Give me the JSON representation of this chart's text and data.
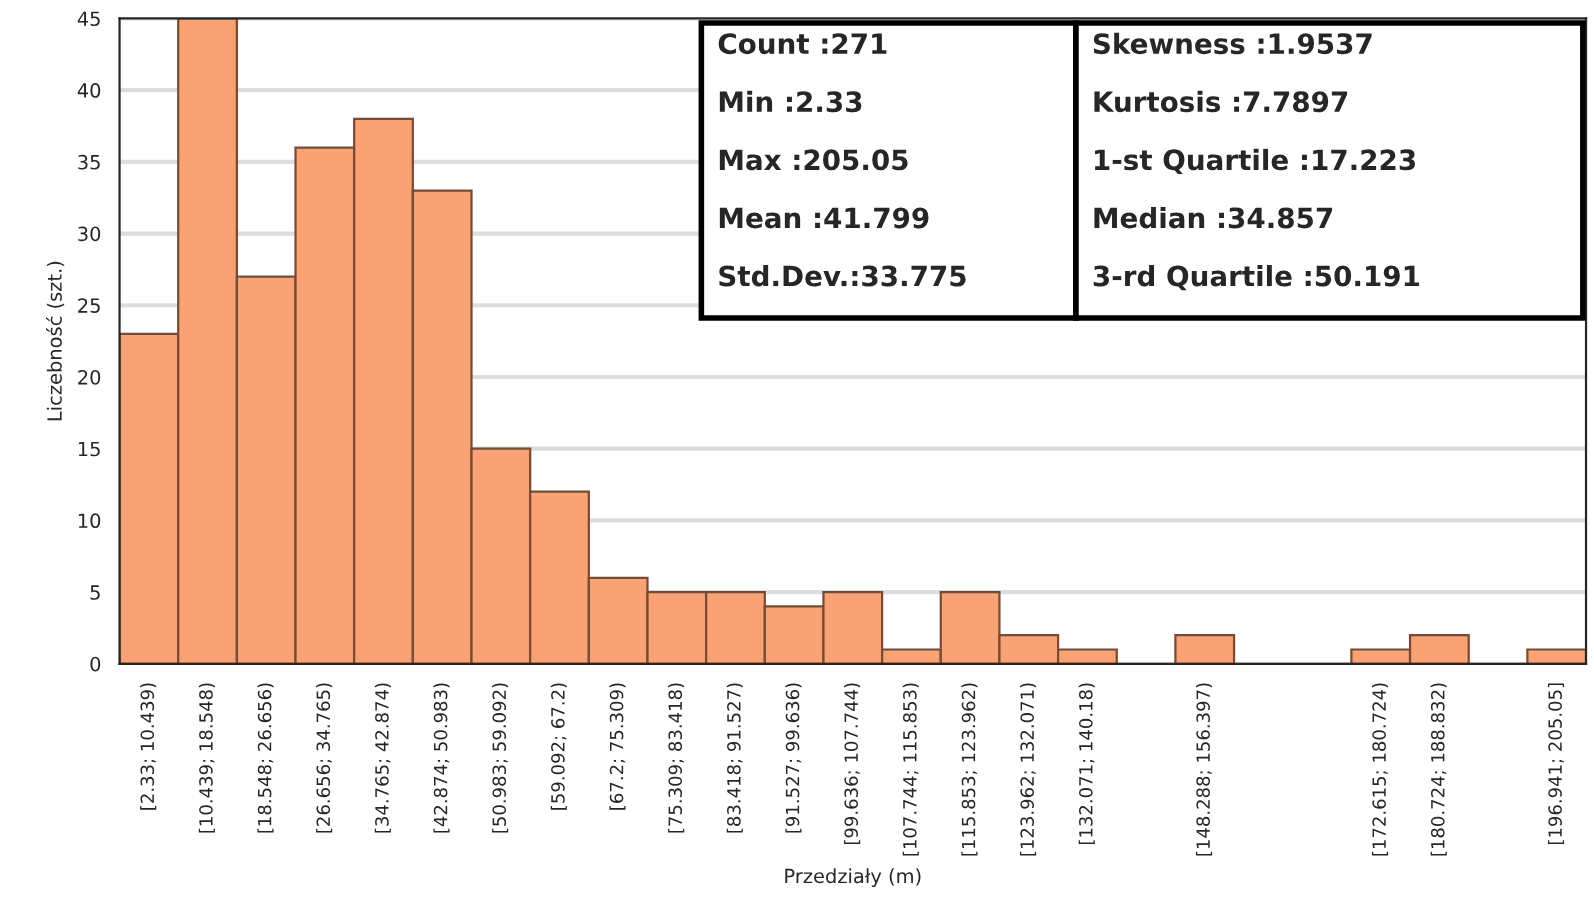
{
  "chart_data": {
    "type": "bar",
    "xlabel": "Przedziały (m)",
    "ylabel": "Liczebność (szt.)",
    "categories": [
      "[2.33; 10.439)",
      "[10.439; 18.548)",
      "[18.548; 26.656)",
      "[26.656; 34.765)",
      "[34.765; 42.874)",
      "[42.874; 50.983)",
      "[50.983; 59.092)",
      "[59.092; 67.2)",
      "[67.2; 75.309)",
      "[75.309; 83.418)",
      "[83.418; 91.527)",
      "[91.527; 99.636)",
      "[99.636; 107.744)",
      "[107.744; 115.853)",
      "[115.853; 123.962)",
      "[123.962; 132.071)",
      "[132.071; 140.18)",
      null,
      "[148.288; 156.397)",
      null,
      null,
      "[172.615; 180.724)",
      "[180.724; 188.832)",
      null,
      "[196.941; 205.05]"
    ],
    "values": [
      23,
      45,
      27,
      36,
      38,
      33,
      15,
      12,
      6,
      5,
      5,
      4,
      5,
      1,
      5,
      2,
      1,
      0,
      2,
      0,
      0,
      1,
      2,
      0,
      1
    ],
    "color": "#f9a275",
    "ylim": [
      0,
      45
    ],
    "yticks": [
      0,
      5,
      10,
      15,
      20,
      25,
      30,
      35,
      40,
      45
    ],
    "grid": "y",
    "annotations": [
      "Count :271",
      "Min :2.33",
      "Max :205.05",
      "Mean :41.799",
      "Std.Dev.:33.775",
      "Skewness :1.9537",
      "Kurtosis :7.7897",
      "1-st Quartile :17.223",
      "Median :34.857",
      "3-rd Quartile :50.191"
    ]
  }
}
